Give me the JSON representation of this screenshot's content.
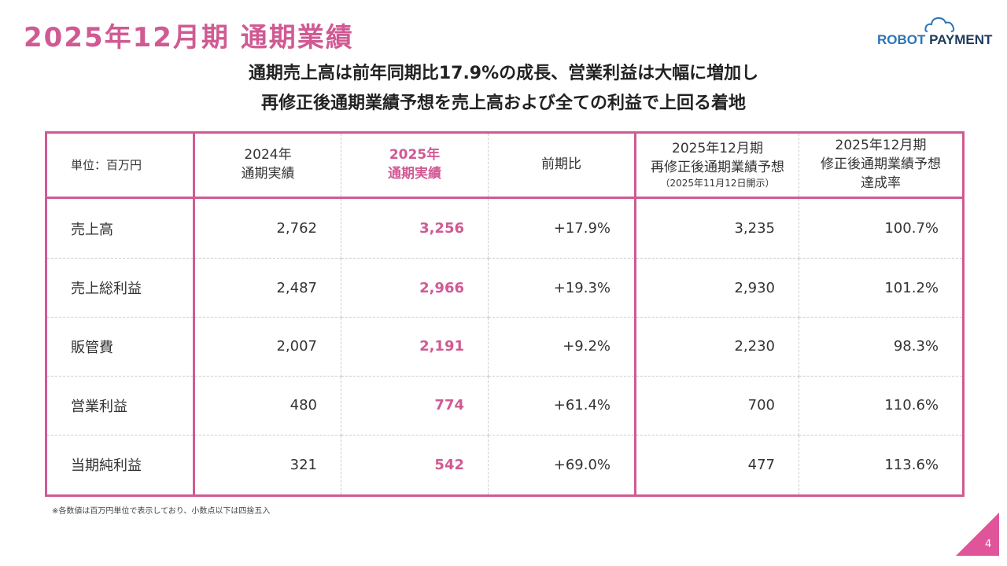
{
  "title": "2025年12月期 通期業績",
  "logo": {
    "text_a": "ROBOT",
    "text_b": "PAYMENT"
  },
  "subtitle": [
    "通期売上高は前年同期比17.9%の成長、営業利益は大幅に増加し",
    "再修正後通期業績予想を売上高および全ての利益で上回る着地"
  ],
  "table": {
    "headers": [
      {
        "lines": [
          "単位：百万円"
        ]
      },
      {
        "lines": [
          "2024年",
          "通期実績"
        ]
      },
      {
        "lines": [
          "2025年",
          "通期実績"
        ]
      },
      {
        "lines": [
          "前期比"
        ]
      },
      {
        "lines": [
          "2025年12月期",
          "再修正後通期業績予想"
        ],
        "note": "（2025年11月12日開示）"
      },
      {
        "lines": [
          "2025年12月期",
          "修正後通期業績予想",
          "達成率"
        ]
      }
    ],
    "rows": [
      [
        "売上高",
        "2,762",
        "3,256",
        "+17.9%",
        "3,235",
        "100.7%"
      ],
      [
        "売上総利益",
        "2,487",
        "2,966",
        "+19.3%",
        "2,930",
        "101.2%"
      ],
      [
        "販管費",
        "2,007",
        "2,191",
        "+9.2%",
        "2,230",
        "98.3%"
      ],
      [
        "営業利益",
        "480",
        "774",
        "+61.4%",
        "700",
        "110.6%"
      ],
      [
        "当期純利益",
        "321",
        "542",
        "+69.0%",
        "477",
        "113.6%"
      ]
    ]
  },
  "footnote": "※各数値は百万円単位で表示しており、小数点以下は四捨五入",
  "page_number": "4",
  "colors": {
    "accent": "#d05a93",
    "triangle": "#e0559a"
  }
}
